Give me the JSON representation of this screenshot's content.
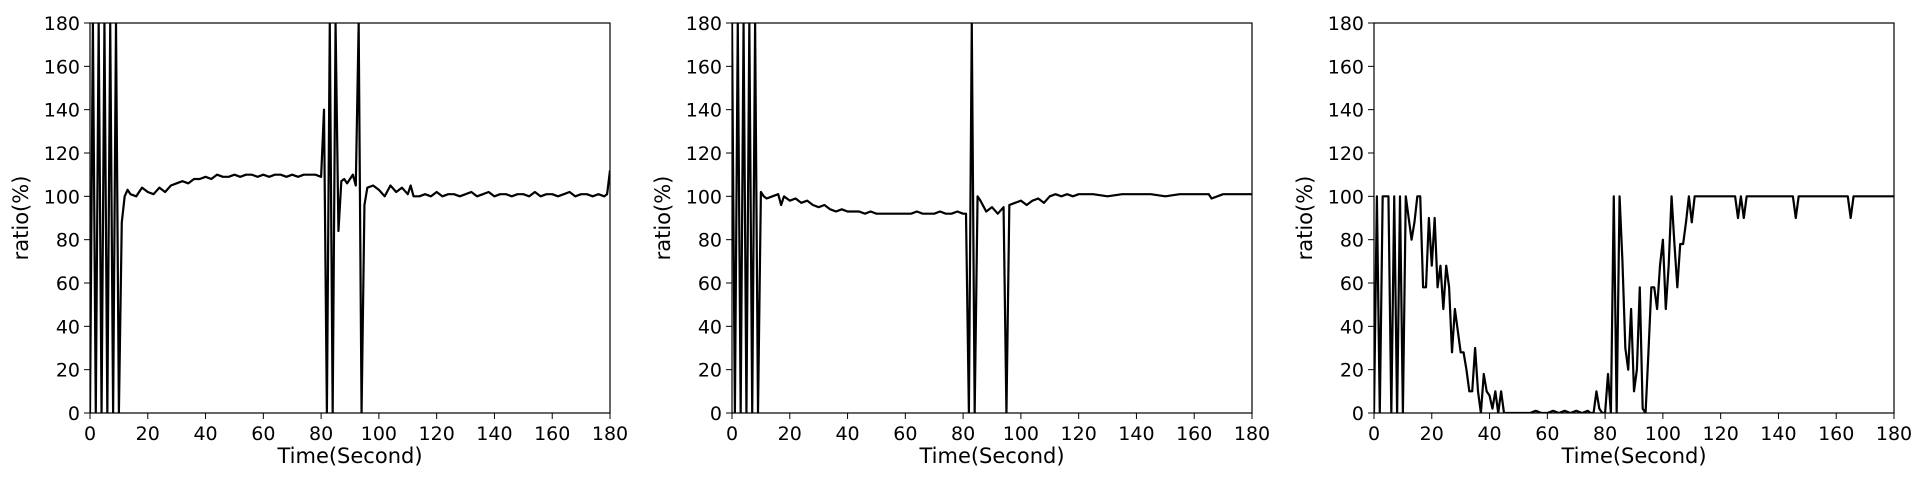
{
  "chart_data": [
    {
      "type": "line",
      "xlabel": "Time(Second)",
      "ylabel": "ratio(%)",
      "xlim": [
        0,
        180
      ],
      "ylim": [
        0,
        180
      ],
      "xticks": [
        0,
        20,
        40,
        60,
        80,
        100,
        120,
        140,
        160,
        180
      ],
      "yticks": [
        0,
        20,
        40,
        60,
        80,
        100,
        120,
        140,
        160,
        180
      ],
      "series": [
        {
          "color": "#000000",
          "x": [
            0,
            1,
            2,
            3,
            4,
            5,
            6,
            7,
            8,
            9,
            10,
            11,
            12,
            13,
            14,
            16,
            18,
            20,
            22,
            24,
            26,
            28,
            30,
            32,
            34,
            36,
            38,
            40,
            42,
            44,
            46,
            48,
            50,
            52,
            54,
            56,
            58,
            60,
            62,
            64,
            66,
            68,
            70,
            72,
            74,
            76,
            78,
            80,
            81,
            82,
            83,
            84,
            85,
            86,
            87,
            88,
            89,
            90,
            91,
            92,
            93,
            94,
            95,
            96,
            98,
            100,
            102,
            104,
            106,
            108,
            110,
            111,
            112,
            114,
            116,
            118,
            120,
            122,
            124,
            126,
            128,
            130,
            132,
            134,
            136,
            138,
            140,
            142,
            144,
            146,
            148,
            150,
            152,
            154,
            156,
            158,
            160,
            162,
            164,
            166,
            168,
            170,
            172,
            174,
            176,
            178,
            179,
            180
          ],
          "y": [
            0,
            180,
            0,
            180,
            0,
            180,
            0,
            180,
            0,
            180,
            0,
            88,
            100,
            103,
            101,
            100,
            104,
            102,
            101,
            104,
            102,
            105,
            106,
            107,
            106,
            108,
            108,
            109,
            108,
            110,
            109,
            109,
            110,
            109,
            110,
            110,
            109,
            110,
            109,
            110,
            110,
            109,
            110,
            109,
            110,
            110,
            110,
            109,
            140,
            0,
            180,
            0,
            180,
            84,
            107,
            108,
            106,
            108,
            110,
            105,
            180,
            0,
            96,
            104,
            105,
            103,
            100,
            105,
            102,
            104,
            101,
            105,
            100,
            100,
            101,
            100,
            102,
            100,
            101,
            101,
            100,
            101,
            102,
            100,
            101,
            102,
            100,
            101,
            101,
            100,
            101,
            101,
            100,
            102,
            100,
            101,
            101,
            100,
            101,
            102,
            100,
            101,
            101,
            100,
            101,
            100,
            101,
            112
          ]
        }
      ]
    },
    {
      "type": "line",
      "xlabel": "Time(Second)",
      "ylabel": "ratio(%)",
      "xlim": [
        0,
        180
      ],
      "ylim": [
        0,
        180
      ],
      "xticks": [
        0,
        20,
        40,
        60,
        80,
        100,
        120,
        140,
        160,
        180
      ],
      "yticks": [
        0,
        20,
        40,
        60,
        80,
        100,
        120,
        140,
        160,
        180
      ],
      "series": [
        {
          "color": "#000000",
          "x": [
            0,
            1,
            2,
            3,
            4,
            5,
            6,
            7,
            8,
            9,
            10,
            11,
            12,
            14,
            16,
            17,
            18,
            20,
            22,
            24,
            26,
            28,
            30,
            32,
            34,
            36,
            38,
            40,
            42,
            44,
            46,
            48,
            50,
            52,
            54,
            56,
            58,
            60,
            62,
            64,
            66,
            68,
            70,
            72,
            74,
            76,
            78,
            80,
            81,
            82,
            83,
            84,
            85,
            86,
            88,
            90,
            92,
            94,
            95,
            96,
            98,
            100,
            102,
            104,
            106,
            108,
            110,
            112,
            114,
            116,
            118,
            120,
            125,
            130,
            135,
            140,
            145,
            150,
            155,
            160,
            165,
            166,
            170,
            175,
            180
          ],
          "y": [
            180,
            0,
            180,
            0,
            180,
            0,
            180,
            0,
            180,
            0,
            102,
            100,
            99,
            100,
            101,
            96,
            100,
            98,
            99,
            97,
            98,
            96,
            95,
            96,
            94,
            93,
            94,
            93,
            93,
            93,
            92,
            93,
            92,
            92,
            92,
            92,
            92,
            92,
            92,
            93,
            92,
            92,
            92,
            93,
            92,
            92,
            93,
            92,
            92,
            0,
            180,
            0,
            100,
            98,
            93,
            95,
            92,
            95,
            0,
            96,
            97,
            98,
            96,
            98,
            99,
            97,
            100,
            101,
            100,
            101,
            100,
            101,
            101,
            100,
            101,
            101,
            101,
            100,
            101,
            101,
            101,
            99,
            101,
            101,
            101
          ]
        }
      ]
    },
    {
      "type": "line",
      "xlabel": "Time(Second)",
      "ylabel": "ratio(%)",
      "xlim": [
        0,
        180
      ],
      "ylim": [
        0,
        180
      ],
      "xticks": [
        0,
        20,
        40,
        60,
        80,
        100,
        120,
        140,
        160,
        180
      ],
      "yticks": [
        0,
        20,
        40,
        60,
        80,
        100,
        120,
        140,
        160,
        180
      ],
      "series": [
        {
          "color": "#000000",
          "x": [
            0,
            1,
            2,
            3,
            4,
            5,
            6,
            7,
            8,
            9,
            10,
            11,
            12,
            13,
            14,
            15,
            16,
            17,
            18,
            19,
            20,
            21,
            22,
            23,
            24,
            25,
            26,
            27,
            28,
            29,
            30,
            31,
            32,
            33,
            34,
            35,
            36,
            37,
            38,
            39,
            40,
            41,
            42,
            43,
            44,
            45,
            46,
            47,
            48,
            50,
            52,
            54,
            56,
            58,
            60,
            62,
            64,
            66,
            68,
            70,
            72,
            74,
            75,
            76,
            77,
            78,
            79,
            80,
            81,
            82,
            83,
            84,
            85,
            86,
            87,
            88,
            89,
            90,
            91,
            92,
            93,
            94,
            95,
            96,
            97,
            98,
            99,
            100,
            101,
            102,
            103,
            104,
            105,
            106,
            107,
            108,
            109,
            110,
            111,
            112,
            114,
            116,
            118,
            120,
            125,
            126,
            127,
            128,
            129,
            130,
            135,
            140,
            145,
            146,
            147,
            148,
            150,
            155,
            160,
            164,
            165,
            166,
            167,
            170,
            175,
            180
          ],
          "y": [
            0,
            100,
            0,
            100,
            100,
            100,
            0,
            100,
            0,
            100,
            0,
            100,
            90,
            80,
            88,
            100,
            100,
            58,
            58,
            90,
            68,
            90,
            58,
            68,
            48,
            68,
            58,
            28,
            48,
            38,
            28,
            28,
            20,
            10,
            10,
            30,
            10,
            0,
            18,
            10,
            8,
            2,
            10,
            0,
            10,
            0,
            0,
            0,
            0,
            0,
            0,
            0,
            1,
            0,
            0,
            1,
            0,
            1,
            0,
            1,
            0,
            1,
            0,
            0,
            10,
            2,
            0,
            0,
            18,
            0,
            100,
            0,
            100,
            70,
            30,
            20,
            48,
            10,
            20,
            58,
            2,
            0,
            28,
            58,
            58,
            48,
            68,
            80,
            48,
            68,
            100,
            78,
            58,
            78,
            78,
            88,
            100,
            88,
            100,
            100,
            100,
            100,
            100,
            100,
            100,
            90,
            100,
            90,
            100,
            100,
            100,
            100,
            100,
            90,
            100,
            100,
            100,
            100,
            100,
            100,
            90,
            100,
            100,
            100,
            100,
            100
          ]
        }
      ]
    }
  ]
}
